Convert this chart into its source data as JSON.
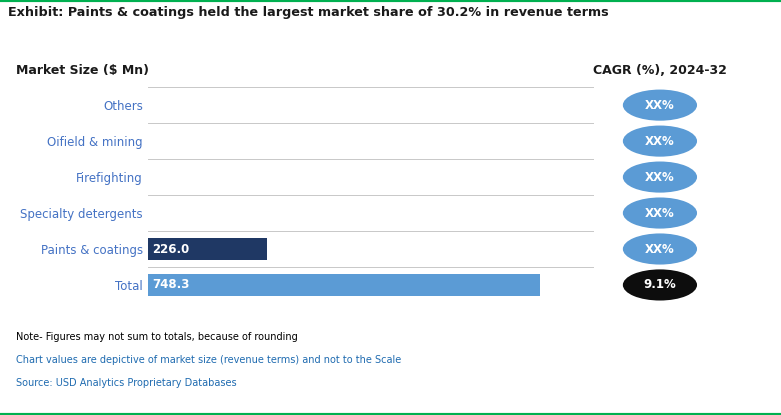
{
  "title": "Exhibit: Paints & coatings held the largest market share of 30.2% in revenue terms",
  "top_border_color": "#00b050",
  "xlabel": "Market Size ($ Mn)",
  "cagr_label": "CAGR (%), 2024-32",
  "categories": [
    "Total",
    "Paints & coatings",
    "Specialty detergents",
    "Firefighting",
    "Oifield & mining",
    "Others"
  ],
  "values": [
    748.3,
    226.0,
    0,
    0,
    0,
    0
  ],
  "bar_colors": [
    "#5b9bd5",
    "#1f3864",
    "#5b9bd5",
    "#5b9bd5",
    "#5b9bd5",
    "#5b9bd5"
  ],
  "bar_labels": [
    "748.3",
    "226.0",
    "",
    "",
    "",
    ""
  ],
  "cagr_values": [
    "9.1%",
    "XX%",
    "XX%",
    "XX%",
    "XX%",
    "XX%"
  ],
  "cagr_bubble_colors": [
    "#0d0d0d",
    "#5b9bd5",
    "#5b9bd5",
    "#5b9bd5",
    "#5b9bd5",
    "#5b9bd5"
  ],
  "cagr_text_colors": [
    "#ffffff",
    "#ffffff",
    "#ffffff",
    "#ffffff",
    "#ffffff",
    "#ffffff"
  ],
  "xlim": [
    0,
    850
  ],
  "bar_height": 0.6,
  "bg_color": "#ffffff",
  "label_color_ytick": "#4472c4",
  "notes": [
    "Note- Figures may not sum to totals, because of rounding",
    "Chart values are depictive of market size (revenue terms) and not to the Scale",
    "Source: USD Analytics Proprietary Databases"
  ],
  "notes_colors": [
    "#000000",
    "#1f6bb0",
    "#1f6bb0"
  ]
}
